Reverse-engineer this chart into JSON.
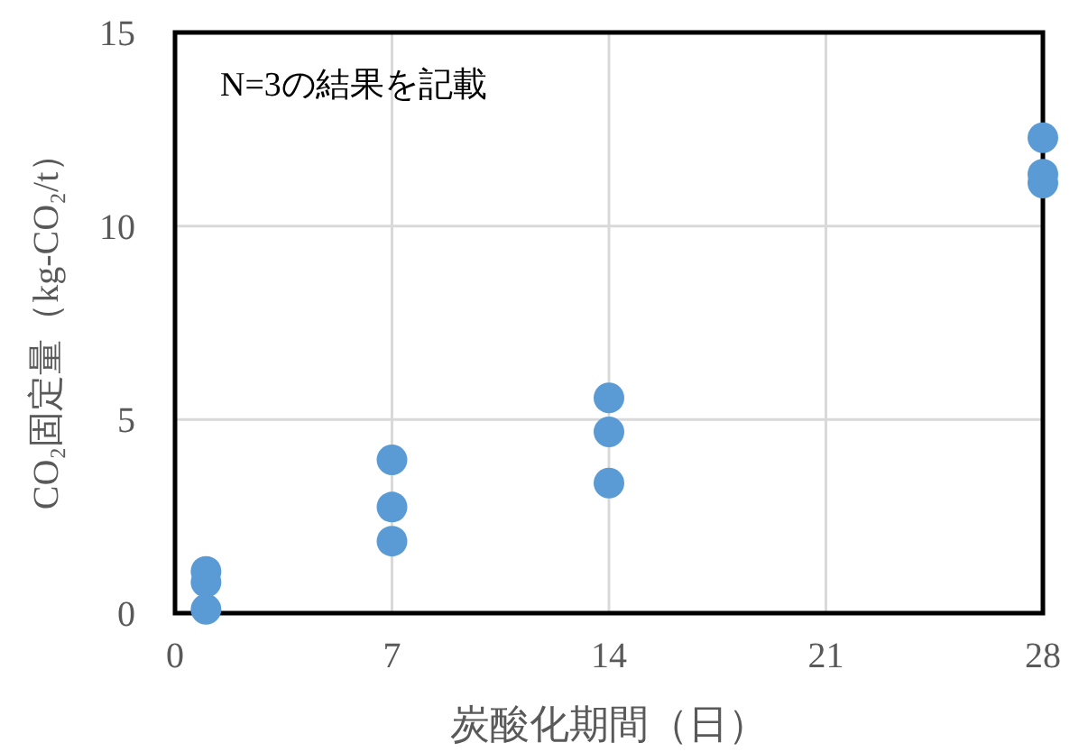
{
  "chart_data": {
    "type": "scatter",
    "xlabel": "炭酸化期間（日）",
    "ylabel": "CO₂固定量（kg-CO₂/t）",
    "annotations": [
      "N=3の結果を記載"
    ],
    "series": [
      {
        "color": "#5b9bd5",
        "x": [
          1,
          1,
          1,
          7,
          7,
          7,
          14,
          14,
          14,
          28,
          28,
          28
        ],
        "values": [
          1.08,
          0.8,
          0.1,
          3.96,
          2.74,
          1.86,
          5.56,
          4.68,
          3.36,
          12.28,
          11.34,
          11.11
        ]
      }
    ],
    "xlim": [
      0,
      28
    ],
    "xticks": [
      0,
      7,
      14,
      21,
      28
    ],
    "ylim": [
      0,
      15
    ],
    "yticks": [
      0,
      5,
      10,
      15
    ],
    "grid": true,
    "marker": "circle"
  }
}
